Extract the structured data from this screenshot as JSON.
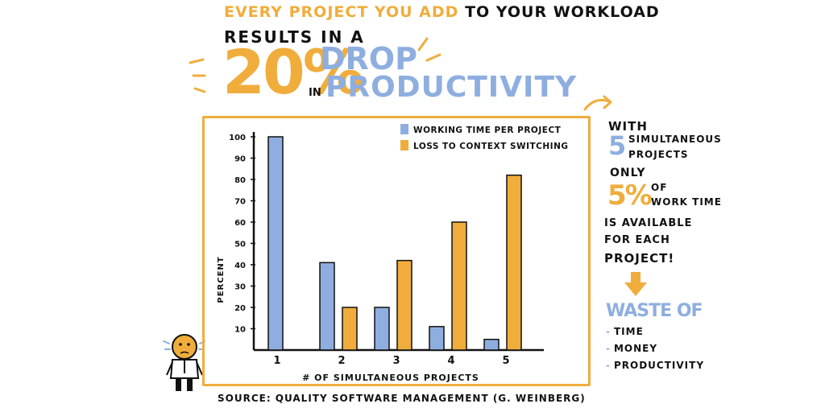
{
  "headline": {
    "line1_orange": "EVERY PROJECT YOU ADD",
    "line1_black": "TO YOUR WORKLOAD",
    "line2": "RESULTS IN A",
    "big_percent": "20%",
    "in_word": "IN",
    "drop_word": "DROP",
    "productivity_word": "PRODUCTIVITY"
  },
  "colors": {
    "blue": "#8eaee0",
    "orange": "#f0ad3c",
    "ink": "#111111"
  },
  "chart_data": {
    "type": "bar",
    "categories": [
      "1",
      "2",
      "3",
      "4",
      "5"
    ],
    "series": [
      {
        "name": "WORKING TIME PER PROJECT",
        "color": "#8eaee0",
        "values": [
          100,
          41,
          20,
          11,
          5
        ]
      },
      {
        "name": "LOSS TO CONTEXT SWITCHING",
        "color": "#f0ad3c",
        "values": [
          0,
          20,
          42,
          60,
          82
        ]
      }
    ],
    "xlabel": "# OF SIMULTANEOUS PROJECTS",
    "ylabel": "PERCENT",
    "y_ticks": [
      "10",
      "20",
      "30",
      "40",
      "50",
      "60",
      "70",
      "80",
      "90",
      "100"
    ],
    "ylim": [
      0,
      100
    ],
    "legend_position": "top-right",
    "grid": false
  },
  "notes": {
    "with": "WITH",
    "num5": "5",
    "simultaneous": "SIMULTANEOUS",
    "projects": "PROJECTS",
    "only": "ONLY",
    "pct5": "5%",
    "of": "OF",
    "work_time": "WORK TIME",
    "avail1": "IS AVAILABLE",
    "avail2": "FOR EACH",
    "avail3": "PROJECT!",
    "waste": "WASTE OF",
    "waste_items": [
      "TIME",
      "MONEY",
      "PRODUCTIVITY"
    ]
  },
  "source": "SOURCE: QUALITY SOFTWARE MANAGEMENT (G. WEINBERG)"
}
